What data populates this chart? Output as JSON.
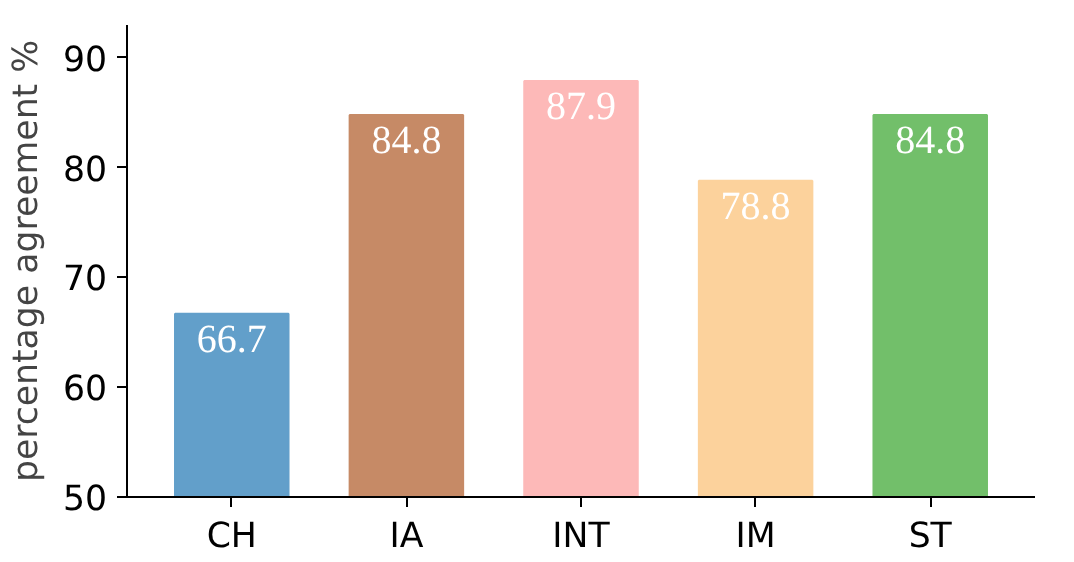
{
  "chart_data": {
    "type": "bar",
    "ylabel": "percentage agreement %",
    "categories": [
      "CH",
      "IA",
      "INT",
      "IM",
      "ST"
    ],
    "values": [
      66.7,
      84.8,
      87.9,
      78.8,
      84.8
    ],
    "colors": [
      "#629fca",
      "#c68a66",
      "#fdb9b8",
      "#fcd29c",
      "#72bf6a"
    ],
    "ylim": [
      50,
      93
    ],
    "yticks": [
      50,
      60,
      70,
      80,
      90
    ],
    "grid": false,
    "data_labels": true
  }
}
